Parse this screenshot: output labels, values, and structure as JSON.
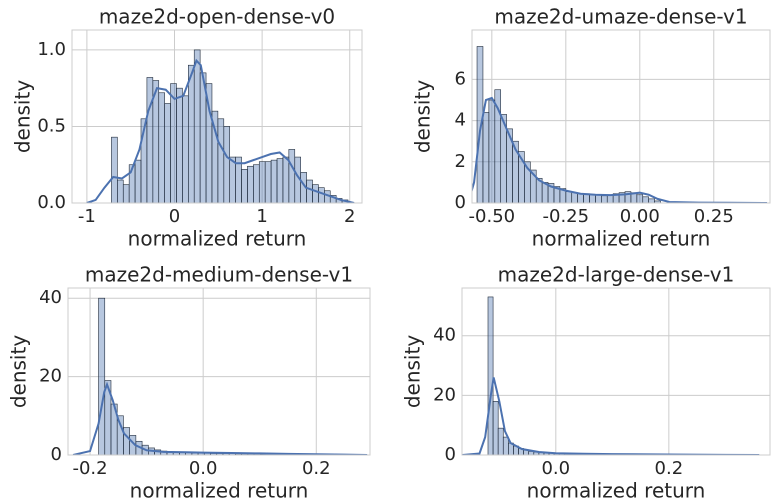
{
  "chart_data": [
    {
      "type": "histogram",
      "title": "maze2d-open-dense-v0",
      "xlabel": "normalized return",
      "ylabel": "density",
      "bins": [
        -0.72,
        -0.6525,
        -0.585,
        -0.5175,
        -0.45,
        -0.3825,
        -0.315,
        -0.2475,
        -0.18,
        -0.1125,
        -0.045,
        0.0225,
        0.09,
        0.1575,
        0.225,
        0.2925,
        0.36,
        0.4275,
        0.495,
        0.5625,
        0.63,
        0.6975,
        0.765,
        0.8325,
        0.9,
        0.9675,
        1.035,
        1.1025,
        1.17,
        1.2375,
        1.305,
        1.3725,
        1.44,
        1.5075,
        1.575,
        1.6425,
        1.71,
        1.7775,
        1.845,
        1.9125,
        1.98
      ],
      "values": [
        0.43,
        0.15,
        0.12,
        0.25,
        0.28,
        0.55,
        0.82,
        0.8,
        0.72,
        0.65,
        0.78,
        0.75,
        0.7,
        0.9,
        1.0,
        0.85,
        0.78,
        0.6,
        0.55,
        0.5,
        0.3,
        0.3,
        0.22,
        0.24,
        0.25,
        0.27,
        0.27,
        0.28,
        0.29,
        0.3,
        0.35,
        0.3,
        0.2,
        0.15,
        0.12,
        0.1,
        0.08,
        0.05,
        0.03,
        0.02
      ],
      "color": "#4c72b0",
      "line": {
        "x": [
          -1.0,
          -0.9,
          -0.8,
          -0.7,
          -0.6,
          -0.5,
          -0.4,
          -0.3,
          -0.2,
          -0.1,
          0.0,
          0.1,
          0.2,
          0.25,
          0.3,
          0.4,
          0.5,
          0.6,
          0.7,
          0.8,
          0.9,
          1.0,
          1.1,
          1.2,
          1.3,
          1.4,
          1.5,
          1.7,
          1.9,
          2.05
        ],
        "values": [
          0.0,
          0.02,
          0.1,
          0.17,
          0.16,
          0.2,
          0.35,
          0.6,
          0.75,
          0.74,
          0.68,
          0.7,
          0.85,
          0.93,
          0.9,
          0.6,
          0.4,
          0.3,
          0.26,
          0.26,
          0.28,
          0.3,
          0.32,
          0.33,
          0.28,
          0.18,
          0.1,
          0.06,
          0.02,
          0.0
        ],
        "color": "#4c72b0"
      },
      "xlim": [
        -1.17,
        2.14
      ],
      "xticks": [
        -1,
        0,
        1,
        2
      ],
      "ylim": [
        0,
        1.13
      ],
      "yticks": [
        {
          "value": 0,
          "label": "0.0"
        },
        {
          "value": 0.5,
          "label": "0.5"
        },
        {
          "value": 1,
          "label": "1.0"
        }
      ],
      "grid": true
    },
    {
      "type": "histogram",
      "title": "maze2d-umaze-dense-v1",
      "xlabel": "normalized return",
      "ylabel": "density",
      "bins": [
        -0.55,
        -0.53,
        -0.51,
        -0.49,
        -0.47,
        -0.45,
        -0.43,
        -0.41,
        -0.39,
        -0.37,
        -0.35,
        -0.33,
        -0.31,
        -0.29,
        -0.27,
        -0.25,
        -0.23,
        -0.21,
        -0.19,
        -0.17,
        -0.15,
        -0.13,
        -0.11,
        -0.09,
        -0.07,
        -0.05,
        -0.03,
        -0.01,
        0.01,
        0.03,
        0.05,
        0.07
      ],
      "values": [
        7.6,
        4.4,
        5.0,
        5.5,
        4.3,
        3.6,
        3.0,
        2.5,
        2.0,
        1.6,
        1.2,
        1.0,
        0.95,
        0.8,
        0.7,
        0.55,
        0.5,
        0.45,
        0.45,
        0.4,
        0.4,
        0.35,
        0.4,
        0.45,
        0.5,
        0.55,
        0.5,
        0.4,
        0.3,
        0.2,
        0.1
      ],
      "color": "#4c72b0",
      "line": {
        "x": [
          -0.58,
          -0.56,
          -0.54,
          -0.52,
          -0.5,
          -0.48,
          -0.45,
          -0.42,
          -0.38,
          -0.34,
          -0.3,
          -0.25,
          -0.2,
          -0.15,
          -0.1,
          -0.05,
          0.0,
          0.03,
          0.06,
          0.1,
          0.2,
          0.3,
          0.43
        ],
        "values": [
          0,
          1,
          3.5,
          5.0,
          5.1,
          4.6,
          3.6,
          2.6,
          1.7,
          1.1,
          0.8,
          0.6,
          0.45,
          0.4,
          0.38,
          0.42,
          0.5,
          0.4,
          0.2,
          0.05,
          0.02,
          0.01,
          0
        ],
        "color": "#4c72b0"
      },
      "xlim": [
        -0.567,
        0.44
      ],
      "xticks": [
        {
          "value": -0.5,
          "label": "-0.50"
        },
        {
          "value": -0.25,
          "label": "-0.25"
        },
        {
          "value": 0,
          "label": "0.00"
        },
        {
          "value": 0.25,
          "label": "0.25"
        }
      ],
      "ylim": [
        0,
        8.4
      ],
      "yticks": [
        0,
        2,
        4,
        6
      ],
      "grid": true
    },
    {
      "type": "histogram",
      "title": "maze2d-medium-dense-v1",
      "xlabel": "normalized return",
      "ylabel": "density",
      "bins": [
        -0.185,
        -0.174,
        -0.163,
        -0.152,
        -0.141,
        -0.13,
        -0.119,
        -0.108,
        -0.097,
        -0.086,
        -0.075,
        -0.064,
        -0.053,
        -0.042,
        -0.031,
        -0.02,
        -0.009,
        0.002,
        0.013,
        0.024,
        0.035,
        0.046,
        0.057,
        0.068,
        0.079,
        0.09,
        0.101,
        0.112,
        0.123,
        0.134,
        0.145
      ],
      "values": [
        40,
        19,
        13,
        10,
        7,
        5,
        3.5,
        2.5,
        1.8,
        1.3,
        1.0,
        0.8,
        0.7,
        0.6,
        0.6,
        0.5,
        0.5,
        0.5,
        0.4,
        0.4,
        0.4,
        0.4,
        0.3,
        0.3,
        0.3,
        0.3,
        0.2,
        0.2,
        0.2,
        0.1
      ],
      "color": "#4c72b0",
      "line": {
        "x": [
          -0.23,
          -0.2,
          -0.185,
          -0.175,
          -0.17,
          -0.16,
          -0.15,
          -0.14,
          -0.12,
          -0.1,
          -0.07,
          -0.03,
          0.0,
          0.05,
          0.1,
          0.15,
          0.2,
          0.25,
          0.29
        ],
        "values": [
          0,
          1,
          8,
          16,
          18,
          14,
          9,
          5.5,
          2.5,
          1.2,
          0.8,
          0.7,
          0.6,
          0.5,
          0.4,
          0.3,
          0.2,
          0.1,
          0
        ],
        "color": "#4c72b0"
      },
      "xlim": [
        -0.239,
        0.295
      ],
      "xticks": [
        -0.2,
        {
          "value": 0,
          "label": "0.0"
        },
        0.2
      ],
      "ylim": [
        0,
        42.6
      ],
      "yticks": [
        0,
        20,
        40
      ],
      "grid": true
    },
    {
      "type": "histogram",
      "title": "maze2d-large-dense-v1",
      "xlabel": "normalized return",
      "ylabel": "density",
      "bins": [
        -0.12,
        -0.111,
        -0.102,
        -0.093,
        -0.084,
        -0.075,
        -0.066,
        -0.057,
        -0.048,
        -0.039,
        -0.03,
        -0.021,
        -0.012,
        -0.003,
        0.006,
        0.015,
        0.024,
        0.033,
        0.042,
        0.051,
        0.06,
        0.069,
        0.078,
        0.087,
        0.096,
        0.105
      ],
      "values": [
        53,
        18,
        9,
        6,
        4,
        3,
        2.2,
        1.6,
        1.2,
        1.0,
        0.8,
        0.7,
        0.6,
        0.5,
        0.5,
        0.4,
        0.4,
        0.3,
        0.3,
        0.3,
        0.2,
        0.2,
        0.2,
        0.2,
        0.1
      ],
      "color": "#4c72b0",
      "line": {
        "x": [
          -0.165,
          -0.135,
          -0.125,
          -0.115,
          -0.11,
          -0.1,
          -0.09,
          -0.08,
          -0.06,
          -0.03,
          0.0,
          0.05,
          0.1,
          0.2,
          0.3,
          0.36
        ],
        "values": [
          0,
          0.5,
          6,
          20,
          26,
          18,
          8,
          4,
          2,
          1,
          0.6,
          0.4,
          0.3,
          0.15,
          0.05,
          0
        ],
        "color": "#4c72b0"
      },
      "xlim": [
        -0.166,
        0.379
      ],
      "xticks": [
        {
          "value": 0,
          "label": "0.0"
        },
        0.2
      ],
      "ylim": [
        0,
        56
      ],
      "yticks": [
        0,
        20,
        40
      ],
      "grid": true
    }
  ]
}
